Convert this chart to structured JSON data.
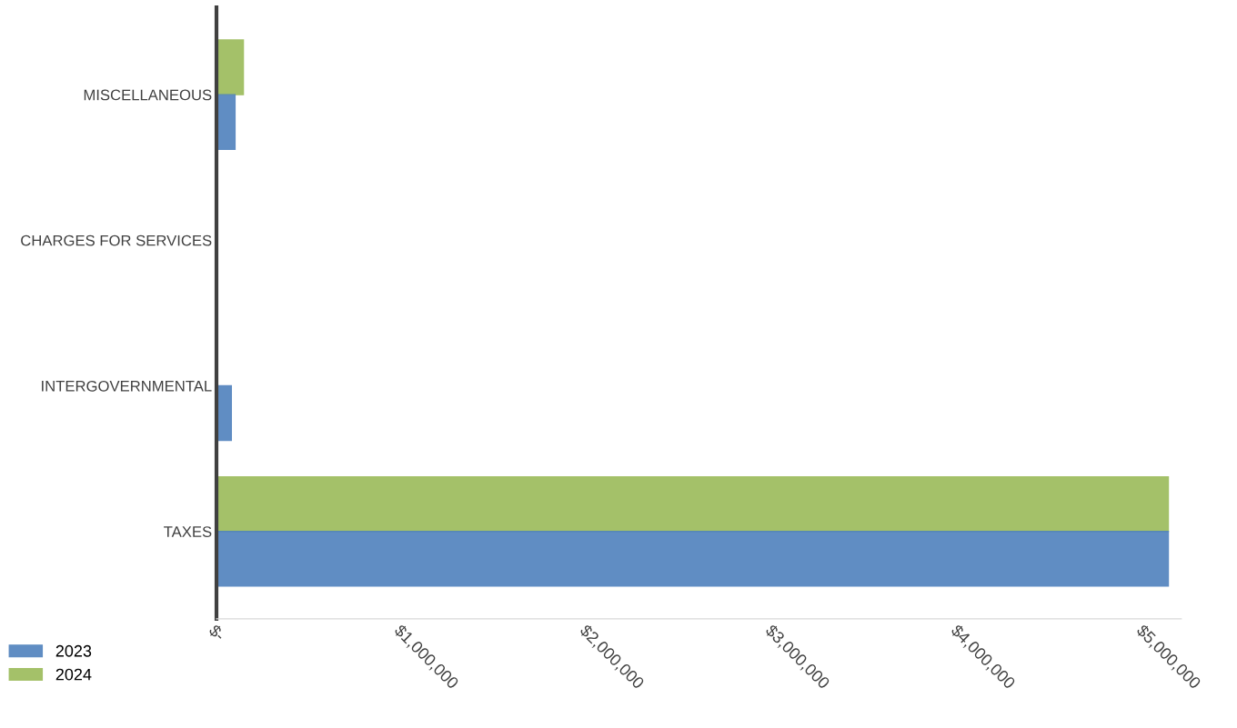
{
  "chart_data": {
    "type": "bar",
    "orientation": "horizontal",
    "categories": [
      "MISCELLANEOUS",
      "CHARGES FOR SERVICES",
      "INTERGOVERNMENTAL",
      "TAXES"
    ],
    "series": [
      {
        "name": "2024",
        "color": "#9bbb59",
        "values": [
          145000,
          0,
          0,
          5130000
        ]
      },
      {
        "name": "2023",
        "color": "#4f81bd",
        "values": [
          100000,
          0,
          80000,
          5130000
        ]
      }
    ],
    "xlim": [
      0,
      5200000
    ],
    "xticks": [
      {
        "value": 0,
        "label": "$-"
      },
      {
        "value": 1000000,
        "label": "$1,000,000"
      },
      {
        "value": 2000000,
        "label": "$2,000,000"
      },
      {
        "value": 3000000,
        "label": "$3,000,000"
      },
      {
        "value": 4000000,
        "label": "$4,000,000"
      },
      {
        "value": 5000000,
        "label": "$5,000,000"
      }
    ],
    "grid": false,
    "legend": "bottom left"
  }
}
